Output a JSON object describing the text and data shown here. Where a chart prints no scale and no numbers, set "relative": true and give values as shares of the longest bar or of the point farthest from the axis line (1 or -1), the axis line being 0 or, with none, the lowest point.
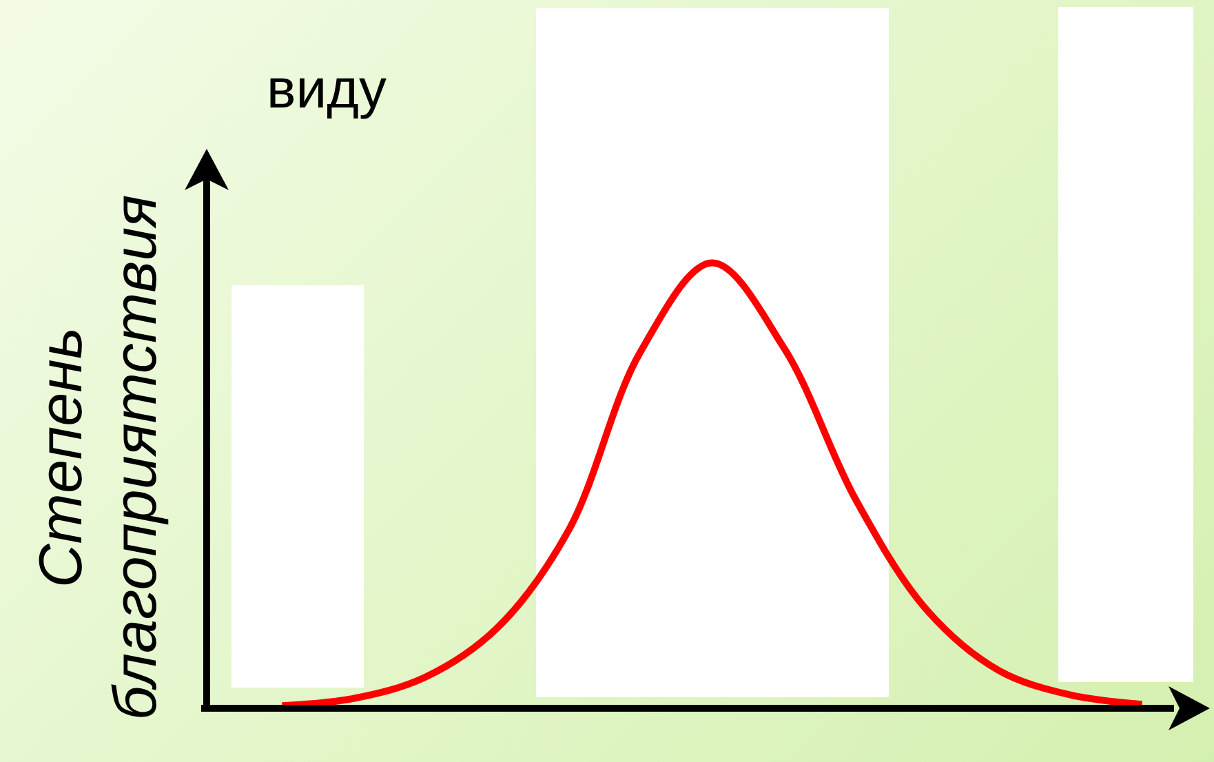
{
  "chart_data": {
    "type": "line",
    "title": "виду",
    "ylabel": "Степень благоприятствия",
    "relative": true,
    "line_style": "solid",
    "marker": "none",
    "categories": [
      null,
      null,
      null,
      null,
      null,
      null,
      null,
      null,
      null,
      null,
      null,
      null,
      null
    ],
    "series": [
      {
        "color": "#ff0000",
        "values": [
          0.006,
          0.022,
          0.07,
          0.18,
          0.4,
          0.8,
          1,
          0.81,
          0.47,
          0.22,
          0.085,
          0.03,
          0.009
        ]
      }
    ]
  }
}
